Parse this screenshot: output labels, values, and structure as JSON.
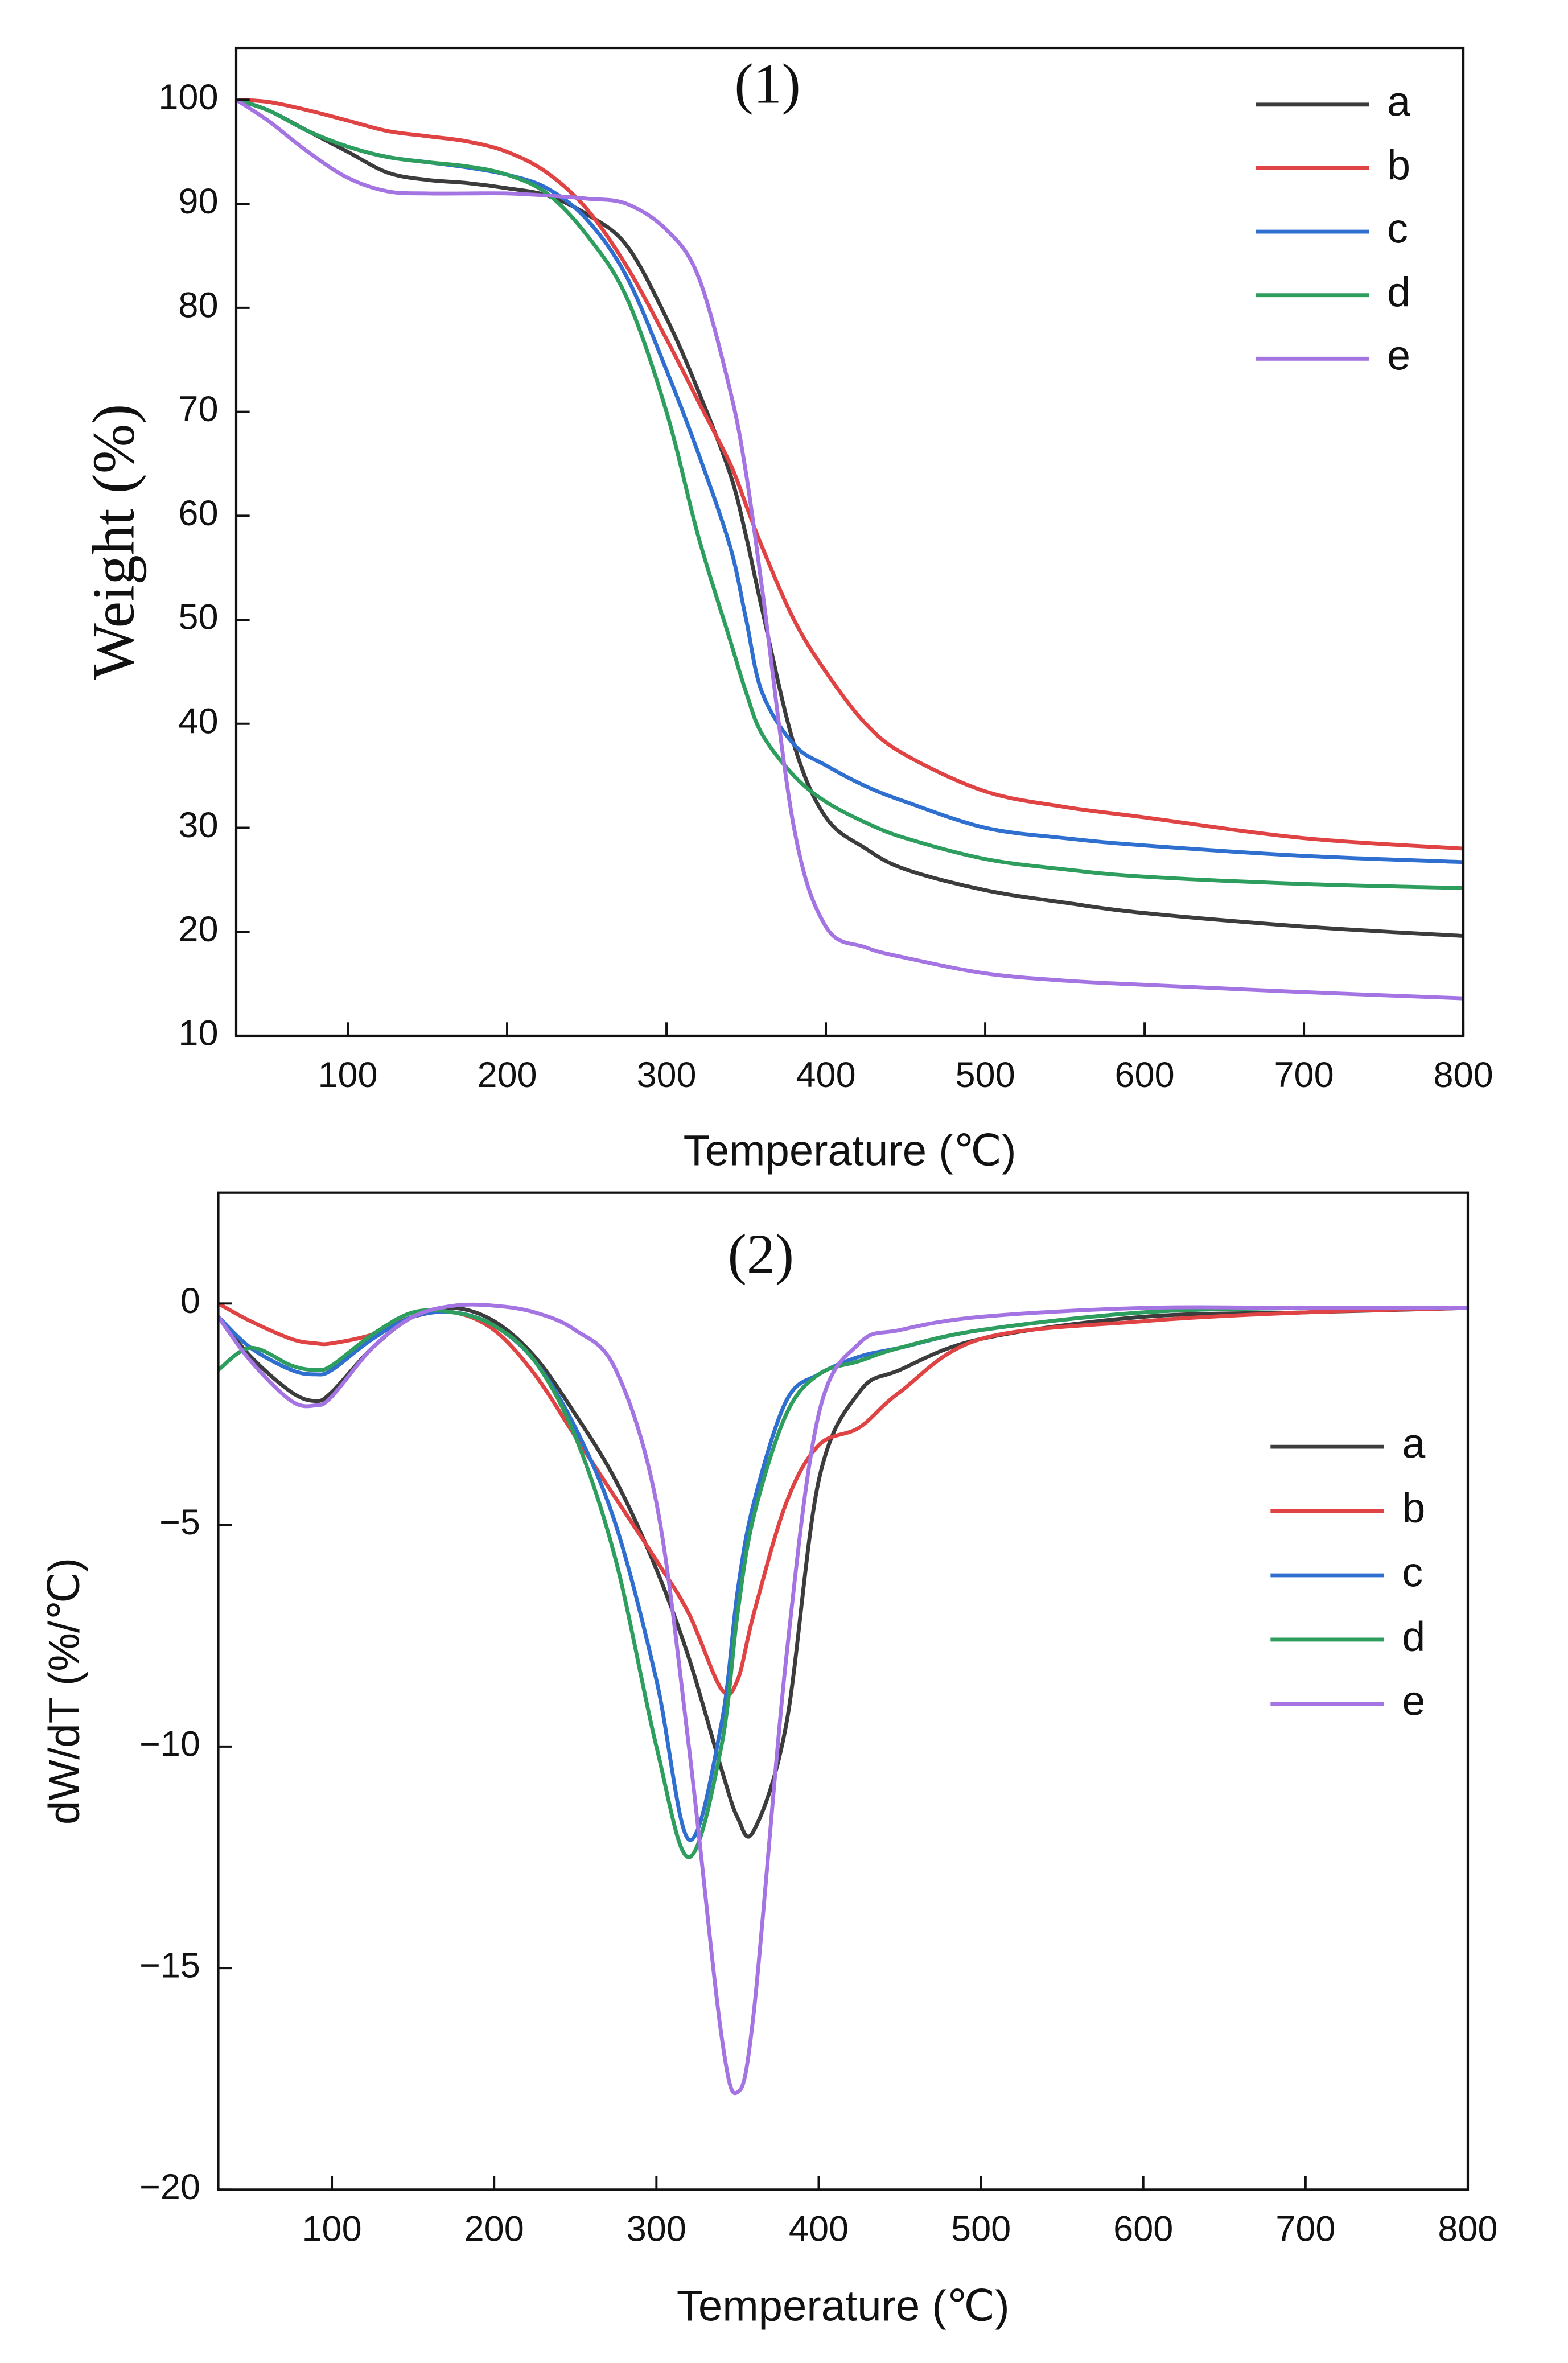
{
  "chart_data": [
    {
      "type": "line",
      "title": "(1)",
      "x_label": "Temperature (℃)",
      "y_label": "Weight (%)",
      "x": [
        30,
        50,
        75,
        100,
        125,
        150,
        175,
        200,
        225,
        250,
        275,
        300,
        320,
        340,
        350,
        360,
        380,
        400,
        425,
        450,
        500,
        550,
        600,
        700,
        800
      ],
      "series": [
        {
          "name": "a",
          "color": "#3c3c3c",
          "values": [
            100,
            99,
            97,
            95,
            93,
            92.3,
            92,
            91.5,
            90.8,
            89,
            86,
            79,
            72,
            64,
            58,
            51,
            38,
            31,
            28,
            26,
            24,
            22.8,
            21.8,
            20.5,
            19.6
          ]
        },
        {
          "name": "b",
          "color": "#e04343",
          "values": [
            100,
            99.8,
            99,
            98,
            97,
            96.5,
            96,
            95,
            93,
            89.5,
            84,
            77,
            71,
            65,
            61,
            57,
            50,
            45,
            40,
            37,
            33.5,
            32,
            31,
            29,
            28
          ]
        },
        {
          "name": "c",
          "color": "#2f6fd0",
          "values": [
            100,
            99,
            97,
            95.5,
            94.5,
            94,
            93.5,
            92.8,
            91.5,
            88.5,
            83,
            74,
            66,
            57,
            50,
            43,
            38,
            36,
            34,
            32.5,
            30,
            29,
            28.3,
            27.3,
            26.7
          ]
        },
        {
          "name": "d",
          "color": "#2e9e5e",
          "values": [
            100,
            99,
            97,
            95.5,
            94.5,
            94,
            93.6,
            92.8,
            91,
            87,
            81,
            70,
            58,
            48,
            43,
            39,
            35,
            32.5,
            30.5,
            29,
            27,
            26,
            25.3,
            24.6,
            24.2
          ]
        },
        {
          "name": "e",
          "color": "#a474e2",
          "values": [
            100,
            98,
            95,
            92.5,
            91.2,
            91,
            91,
            91,
            90.8,
            90.5,
            90,
            87.5,
            83,
            72,
            64,
            53,
            30,
            20.5,
            18.5,
            17.5,
            16,
            15.3,
            14.9,
            14.2,
            13.6
          ]
        }
      ],
      "xlim": [
        30,
        800
      ],
      "xticks": [
        100,
        200,
        300,
        400,
        500,
        600,
        700,
        800
      ],
      "ylim": [
        10,
        105
      ],
      "yticks": [
        10,
        20,
        30,
        40,
        50,
        60,
        70,
        80,
        90,
        100
      ],
      "legend": "upper right"
    },
    {
      "type": "line",
      "title": "(2)",
      "x_label": "Temperature (℃)",
      "y_label": "dW/dT (%/℃)",
      "x": [
        30,
        50,
        75,
        90,
        100,
        125,
        150,
        175,
        200,
        225,
        250,
        275,
        300,
        320,
        340,
        350,
        360,
        380,
        400,
        425,
        450,
        500,
        600,
        700,
        800
      ],
      "series": [
        {
          "name": "a",
          "color": "#3c3c3c",
          "values": [
            -0.3,
            -1.2,
            -2.0,
            -2.2,
            -2.0,
            -1.0,
            -0.3,
            -0.1,
            -0.4,
            -1.2,
            -2.5,
            -4.0,
            -6.0,
            -8.0,
            -10.5,
            -11.6,
            -11.9,
            -9.5,
            -4,
            -2,
            -1.5,
            -0.8,
            -0.3,
            -0.2,
            -0.1
          ]
        },
        {
          "name": "b",
          "color": "#e04343",
          "values": [
            0,
            -0.4,
            -0.8,
            -0.9,
            -0.9,
            -0.7,
            -0.3,
            -0.2,
            -0.6,
            -1.6,
            -3.0,
            -4.4,
            -5.8,
            -7.0,
            -8.7,
            -8.5,
            -7.0,
            -4.5,
            -3.2,
            -2.8,
            -2.0,
            -0.8,
            -0.4,
            -0.2,
            -0.1
          ]
        },
        {
          "name": "c",
          "color": "#2f6fd0",
          "values": [
            -0.3,
            -1.0,
            -1.5,
            -1.6,
            -1.5,
            -0.8,
            -0.3,
            -0.2,
            -0.5,
            -1.3,
            -2.8,
            -5.0,
            -8.5,
            -12.1,
            -9.5,
            -6.5,
            -4.5,
            -2.2,
            -1.6,
            -1.2,
            -1.0,
            -0.6,
            -0.2,
            -0.1,
            -0.1
          ]
        },
        {
          "name": "d",
          "color": "#2e9e5e",
          "values": [
            -1.5,
            -1.0,
            -1.4,
            -1.5,
            -1.4,
            -0.7,
            -0.2,
            -0.2,
            -0.5,
            -1.3,
            -3.0,
            -5.8,
            -10.0,
            -12.5,
            -10.0,
            -7,
            -4.8,
            -2.5,
            -1.6,
            -1.3,
            -1.0,
            -0.6,
            -0.2,
            -0.1,
            -0.1
          ]
        },
        {
          "name": "e",
          "color": "#a474e2",
          "values": [
            -0.3,
            -1.3,
            -2.2,
            -2.3,
            -2.1,
            -1.0,
            -0.3,
            -0.05,
            -0.05,
            -0.2,
            -0.6,
            -1.5,
            -4.5,
            -10,
            -16.5,
            -17.8,
            -16,
            -8,
            -2.5,
            -0.9,
            -0.6,
            -0.3,
            -0.1,
            -0.1,
            -0.1
          ]
        }
      ],
      "xlim": [
        30,
        800
      ],
      "xticks": [
        100,
        200,
        300,
        400,
        500,
        600,
        700,
        800
      ],
      "ylim": [
        -20,
        2.5
      ],
      "yticks": [
        {
          "value": -20,
          "label": "−20"
        },
        {
          "value": -15,
          "label": "−15"
        },
        {
          "value": -10,
          "label": "−10"
        },
        {
          "value": -5,
          "label": "−5"
        },
        0
      ],
      "legend": "right"
    }
  ]
}
